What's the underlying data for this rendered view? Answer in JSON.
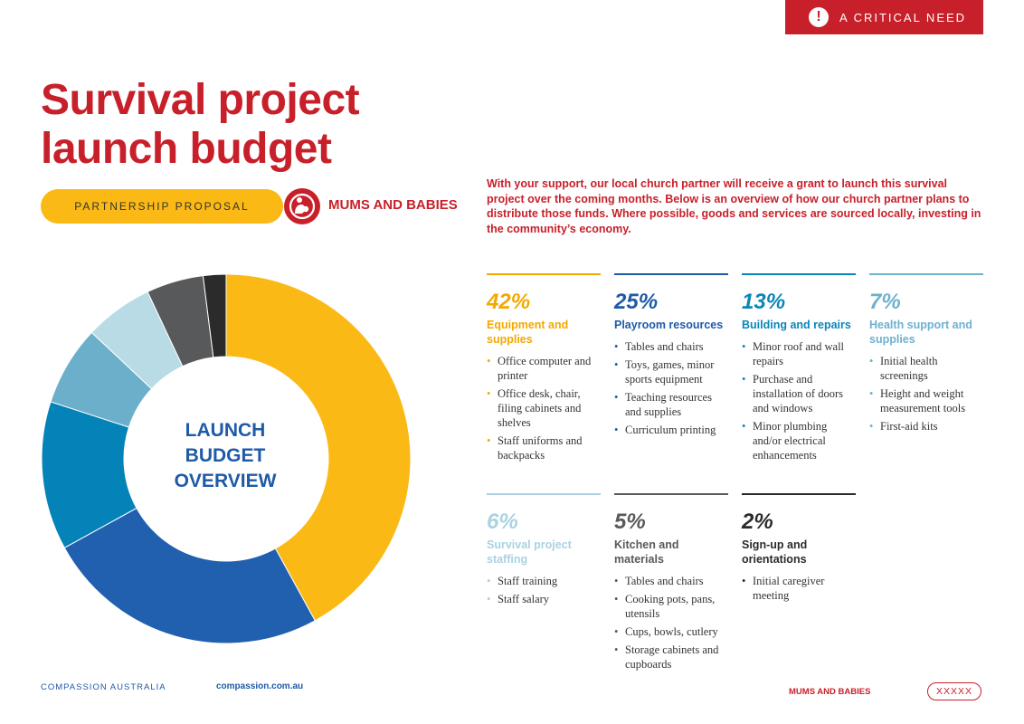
{
  "badge": {
    "icon": "alert-icon",
    "text": "A CRITICAL NEED"
  },
  "title": {
    "line1": "Survival project",
    "line2": "launch budget"
  },
  "pill": {
    "text": "PARTNERSHIP PROPOSAL"
  },
  "program": {
    "icon": "mother-baby-icon",
    "label": "MUMS AND BABIES"
  },
  "intro": "With your support, our local church partner will receive a grant to launch this survival project over the coming months. Below is an overview of how our church partner plans to distribute those funds. Where possible, goods and services are sourced locally, investing in the community’s economy.",
  "chart_center": {
    "line1": "LAUNCH",
    "line2": "BUDGET",
    "line3": "OVERVIEW"
  },
  "chart_data": {
    "type": "pie",
    "title": "LAUNCH BUDGET OVERVIEW",
    "categories": [
      "Equipment and supplies",
      "Playroom resources",
      "Building and repairs",
      "Health support and supplies",
      "Survival project staffing",
      "Kitchen and materials",
      "Sign-up and orientations"
    ],
    "values": [
      42,
      25,
      13,
      7,
      6,
      5,
      2
    ],
    "colors": [
      "#fbb916",
      "#2160ae",
      "#0483b9",
      "#6cafca",
      "#b9dbe6",
      "#58595b",
      "#2b2b2b"
    ],
    "donut": true
  },
  "categories": [
    {
      "pct": "42%",
      "name": "Equipment and supplies",
      "color": "#f5a800",
      "items": [
        "Office computer and printer",
        "Office desk, chair, filing cabinets and shelves",
        "Staff uniforms and backpacks"
      ]
    },
    {
      "pct": "25%",
      "name": "Playroom resources",
      "color": "#1e5aa8",
      "items": [
        "Tables and chairs",
        "Toys, games, minor sports equipment",
        "Teaching resources and supplies",
        "Curriculum printing"
      ]
    },
    {
      "pct": "13%",
      "name": "Building and repairs",
      "color": "#0a86b8",
      "items": [
        "Minor roof and wall repairs",
        "Purchase and installation of doors and windows",
        "Minor plumbing and/or electrical enhancements"
      ]
    },
    {
      "pct": "7%",
      "name": "Health support and supplies",
      "color": "#6eb1cd",
      "items": [
        "Initial health screenings",
        "Height and weight measurement tools",
        "First-aid kits"
      ]
    },
    {
      "pct": "6%",
      "name": "Survival project staffing",
      "color": "#a9d2e2",
      "items": [
        "Staff training",
        "Staff salary"
      ]
    },
    {
      "pct": "5%",
      "name": "Kitchen and materials",
      "color": "#58595b",
      "items": [
        "Tables and chairs",
        "Cooking pots, pans, utensils",
        "Cups, bowls, cutlery",
        "Storage cabinets and cupboards"
      ]
    },
    {
      "pct": "2%",
      "name": "Sign-up and orientations",
      "color": "#2b2b2b",
      "items": [
        "Initial caregiver meeting"
      ]
    }
  ],
  "footer": {
    "org": "COMPASSION AUSTRALIA",
    "url": "compassion.com.au",
    "program": "MUMS AND BABIES",
    "code": "XXXXX"
  }
}
